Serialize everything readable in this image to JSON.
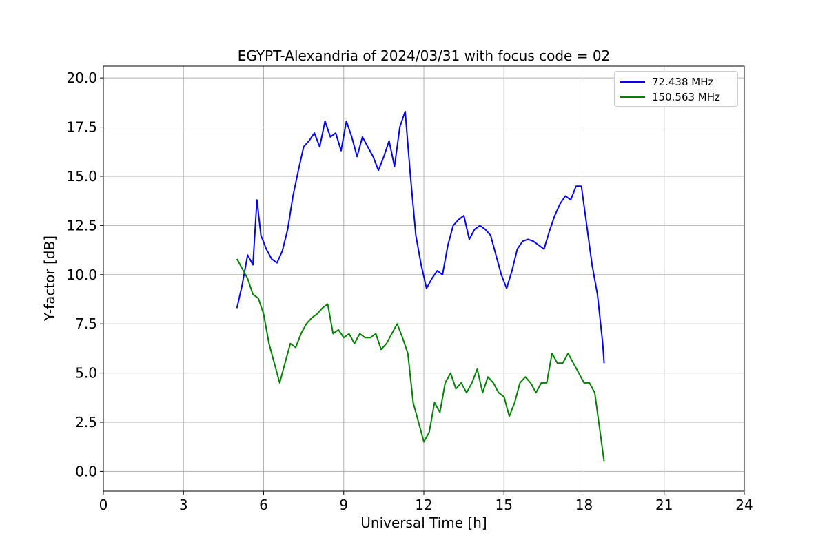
{
  "chart_data": {
    "type": "line",
    "title": "EGYPT-Alexandria of 2024/03/31 with focus code = 02",
    "xlabel": "Universal Time [h]",
    "ylabel": "Y-factor [dB]",
    "xlim": [
      0,
      24
    ],
    "ylim": [
      -1,
      20.6
    ],
    "xticks": [
      "0",
      "3",
      "6",
      "9",
      "12",
      "15",
      "18",
      "21",
      "24"
    ],
    "yticks": [
      "0.0",
      "2.5",
      "5.0",
      "7.5",
      "10.0",
      "12.5",
      "15.0",
      "17.5",
      "20.0"
    ],
    "grid": true,
    "legend_position": "top-right",
    "series": [
      {
        "name": "72.438 MHz",
        "color": "#0000ff",
        "x": [
          5.0,
          5.2,
          5.4,
          5.6,
          5.75,
          5.9,
          6.1,
          6.3,
          6.5,
          6.7,
          6.9,
          7.1,
          7.3,
          7.5,
          7.7,
          7.9,
          8.1,
          8.3,
          8.5,
          8.7,
          8.9,
          9.1,
          9.3,
          9.5,
          9.7,
          9.9,
          10.1,
          10.3,
          10.5,
          10.7,
          10.9,
          11.1,
          11.3,
          11.5,
          11.7,
          11.9,
          12.1,
          12.3,
          12.5,
          12.7,
          12.9,
          13.1,
          13.3,
          13.5,
          13.7,
          13.9,
          14.1,
          14.3,
          14.5,
          14.7,
          14.9,
          15.1,
          15.3,
          15.5,
          15.7,
          15.9,
          16.1,
          16.3,
          16.5,
          16.7,
          16.9,
          17.1,
          17.3,
          17.5,
          17.7,
          17.9,
          18.1,
          18.3,
          18.5,
          18.7,
          18.75
        ],
        "values": [
          8.3,
          9.5,
          11.0,
          10.5,
          13.8,
          12.0,
          11.3,
          10.8,
          10.6,
          11.2,
          12.3,
          14.0,
          15.3,
          16.5,
          16.8,
          17.2,
          16.5,
          17.8,
          17.0,
          17.2,
          16.3,
          17.8,
          17.0,
          16.0,
          17.0,
          16.5,
          16.0,
          15.3,
          16.0,
          16.8,
          15.5,
          17.5,
          18.3,
          15.0,
          12.0,
          10.5,
          9.3,
          9.8,
          10.2,
          10.0,
          11.5,
          12.5,
          12.8,
          13.0,
          11.8,
          12.3,
          12.5,
          12.3,
          12.0,
          11.0,
          10.0,
          9.3,
          10.2,
          11.3,
          11.7,
          11.8,
          11.7,
          11.5,
          11.3,
          12.2,
          13.0,
          13.6,
          14.0,
          13.8,
          14.5,
          14.5,
          12.5,
          10.5,
          9.0,
          6.5,
          5.5
        ]
      },
      {
        "name": "150.563 MHz",
        "color": "#008000",
        "x": [
          5.0,
          5.2,
          5.4,
          5.6,
          5.8,
          6.0,
          6.2,
          6.4,
          6.6,
          6.8,
          7.0,
          7.2,
          7.4,
          7.6,
          7.8,
          8.0,
          8.2,
          8.4,
          8.6,
          8.8,
          9.0,
          9.2,
          9.4,
          9.6,
          9.8,
          10.0,
          10.2,
          10.4,
          10.6,
          10.8,
          11.0,
          11.2,
          11.4,
          11.6,
          11.8,
          12.0,
          12.2,
          12.4,
          12.6,
          12.8,
          13.0,
          13.2,
          13.4,
          13.6,
          13.8,
          14.0,
          14.2,
          14.4,
          14.6,
          14.8,
          15.0,
          15.2,
          15.4,
          15.6,
          15.8,
          16.0,
          16.2,
          16.4,
          16.6,
          16.8,
          17.0,
          17.2,
          17.4,
          17.6,
          17.8,
          18.0,
          18.2,
          18.4,
          18.6,
          18.75
        ],
        "values": [
          10.8,
          10.3,
          9.8,
          9.0,
          8.8,
          8.0,
          6.5,
          5.5,
          4.5,
          5.5,
          6.5,
          6.3,
          7.0,
          7.5,
          7.8,
          8.0,
          8.3,
          8.5,
          7.0,
          7.2,
          6.8,
          7.0,
          6.5,
          7.0,
          6.8,
          6.8,
          7.0,
          6.2,
          6.5,
          7.0,
          7.5,
          6.8,
          6.0,
          3.5,
          2.5,
          1.5,
          2.0,
          3.5,
          3.0,
          4.5,
          5.0,
          4.2,
          4.5,
          4.0,
          4.5,
          5.2,
          4.0,
          4.8,
          4.5,
          4.0,
          3.8,
          2.8,
          3.5,
          4.5,
          4.8,
          4.5,
          4.0,
          4.5,
          4.5,
          6.0,
          5.5,
          5.5,
          6.0,
          5.5,
          5.0,
          4.5,
          4.5,
          4.0,
          2.0,
          0.5
        ]
      }
    ]
  }
}
